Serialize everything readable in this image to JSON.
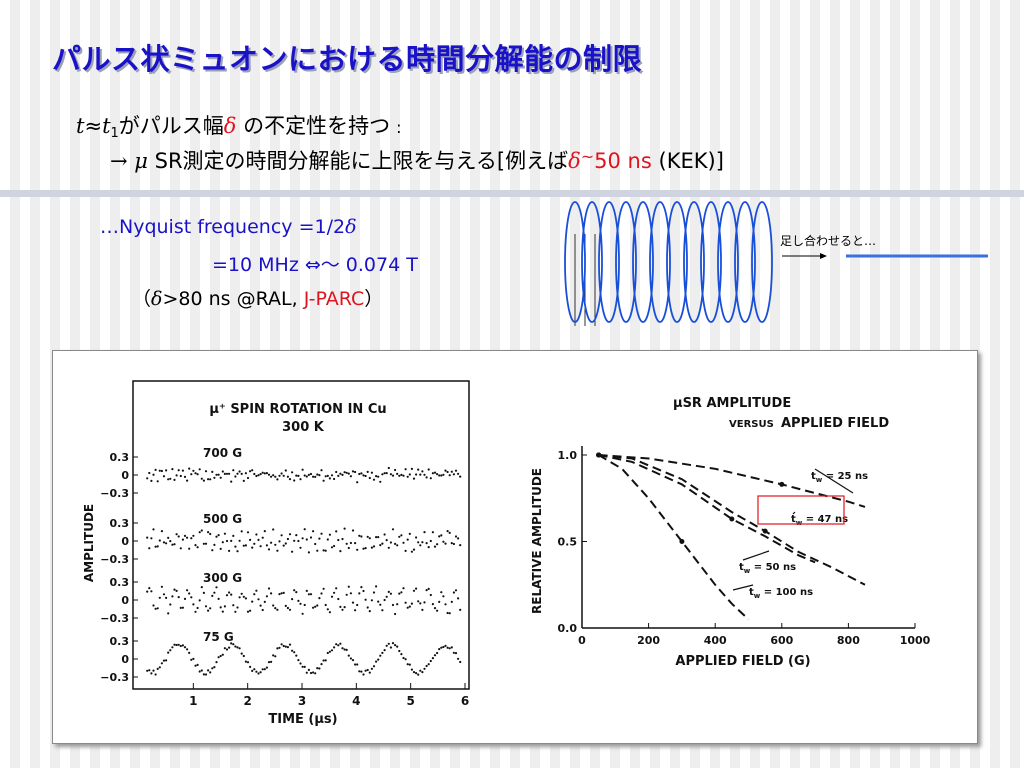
{
  "title": "パルス状ミュオンにおける時間分解能の制限",
  "line1": {
    "var_t": "t",
    "approx": "≈",
    "var_t1": "t",
    "sub1": "1",
    "text_a": "がパルス幅",
    "delta": "δ",
    "text_b": "の不定性を持つ",
    "colon": ":"
  },
  "line2": {
    "arrow_mu": "→ μ",
    "text_a": "SR測定の時間分解能に上限を与える[例えば",
    "delta": "δ",
    "tilde": "~",
    "value": "50 ns",
    "text_b": "(KEK)]"
  },
  "nyquist": {
    "line1_prefix": "…Nyquist frequency  =1/2",
    "line1_delta": "δ",
    "line2": "=10 MHz ⇔～ 0.074 T",
    "line3_open": "（",
    "line3_delta": "δ",
    "line3_mid": ">80 ns @RAL, ",
    "line3_jparc": "J-PARC",
    "line3_close": "）"
  },
  "coil_note": "足し合わせると…",
  "colors": {
    "title": "#1a12c8",
    "accent_red": "#e0141e",
    "coil": "#1a4fd8",
    "flat_line": "#3a6fe0"
  },
  "left_figure": {
    "title_line1": "μ⁺ SPIN ROTATION IN Cu",
    "title_line2": "300 K",
    "ylabel": "AMPLITUDE",
    "xlabel": "TIME (μs)",
    "x_ticks": [
      "1",
      "2",
      "3",
      "4",
      "5",
      "6"
    ],
    "y_tick_top": "0.3",
    "y_tick_mid": "0",
    "y_tick_bot": "−0.3",
    "traces": [
      {
        "label": "700 G",
        "field_G": 700
      },
      {
        "label": "500 G",
        "field_G": 500
      },
      {
        "label": "300 G",
        "field_G": 300
      },
      {
        "label": "75 G",
        "field_G": 75
      }
    ]
  },
  "chart_data": {
    "type": "line",
    "title": "μSR AMPLITUDE VERSUS APPLIED FIELD",
    "title_line1": "μSR AMPLITUDE",
    "title_line2a": "VERSUS",
    "title_line2b": "APPLIED FIELD",
    "xlabel": "APPLIED FIELD (G)",
    "ylabel": "RELATIVE AMPLITUDE",
    "xlim": [
      0,
      1000
    ],
    "ylim": [
      0,
      1.0
    ],
    "x_ticks": [
      "0",
      "200",
      "400",
      "600",
      "800",
      "1000"
    ],
    "y_ticks": [
      "0.0",
      "0.5",
      "1.0"
    ],
    "series": [
      {
        "name": "t_w = 25 ns",
        "label_main": "t",
        "label_sub": "w",
        "label_rest": " = 25 ns",
        "x": [
          50,
          200,
          400,
          600,
          700,
          800,
          850
        ],
        "y": [
          1.0,
          0.98,
          0.92,
          0.83,
          0.78,
          0.73,
          0.7
        ]
      },
      {
        "name": "t_w = 47 ns",
        "label_main": "t",
        "label_sub": "w",
        "label_rest": " = 47 ns",
        "x": [
          50,
          150,
          300,
          450,
          550,
          650,
          750,
          800,
          850
        ],
        "y": [
          1.0,
          0.98,
          0.86,
          0.67,
          0.56,
          0.44,
          0.35,
          0.3,
          0.25
        ]
      },
      {
        "name": "t_w = 50 ns",
        "label_main": "t",
        "label_sub": "w",
        "label_rest": " = 50 ns",
        "x": [
          50,
          150,
          300,
          450,
          550,
          650,
          700
        ],
        "y": [
          1.0,
          0.96,
          0.83,
          0.63,
          0.53,
          0.42,
          0.38
        ]
      },
      {
        "name": "t_w = 100 ns",
        "label_main": "t",
        "label_sub": "w",
        "label_rest": " = 100 ns",
        "x": [
          50,
          120,
          200,
          300,
          400,
          450,
          500
        ],
        "y": [
          1.0,
          0.92,
          0.75,
          0.5,
          0.25,
          0.14,
          0.05
        ]
      }
    ],
    "highlight_series": "t_w = 47 ns",
    "legend": "inline labels"
  }
}
